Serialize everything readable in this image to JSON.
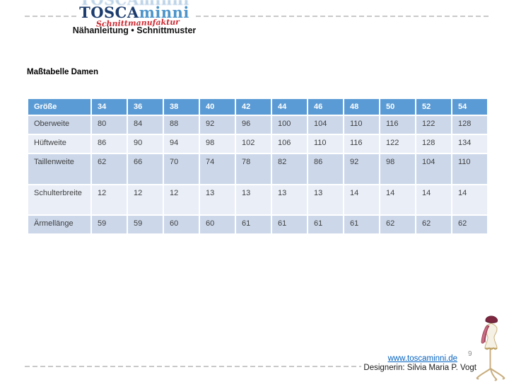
{
  "header": {
    "logo_ghost": "TOSCAminni",
    "logo_primary": "TOSCA",
    "logo_secondary": "minni",
    "logo_tagline": "Schnittmanufaktur",
    "subtitle": "Nähanleitung • Schnittmuster"
  },
  "page": {
    "title": "Maßtabelle Damen",
    "number": "9"
  },
  "table": {
    "columns": [
      "Größe",
      "34",
      "36",
      "38",
      "40",
      "42",
      "44",
      "46",
      "48",
      "50",
      "52",
      "54"
    ],
    "rows": [
      {
        "label": "Oberweite",
        "values": [
          "80",
          "84",
          "88",
          "92",
          "96",
          "100",
          "104",
          "110",
          "116",
          "122",
          "128"
        ]
      },
      {
        "label": "Hüftweite",
        "values": [
          "86",
          "90",
          "94",
          "98",
          "102",
          "106",
          "110",
          "116",
          "122",
          "128",
          "134"
        ]
      },
      {
        "label": "Taillenweite",
        "values": [
          "62",
          "66",
          "70",
          "74",
          "78",
          "82",
          "86",
          "92",
          "98",
          "104",
          "110"
        ]
      },
      {
        "label": "Schulterbreite",
        "values": [
          "12",
          "12",
          "12",
          "13",
          "13",
          "13",
          "13",
          "14",
          "14",
          "14",
          "14"
        ]
      },
      {
        "label": "Ärmellänge",
        "values": [
          "59",
          "59",
          "60",
          "60",
          "61",
          "61",
          "61",
          "61",
          "62",
          "62",
          "62"
        ]
      }
    ]
  },
  "footer": {
    "website": "www.toscaminni.de",
    "designer": "Designerin: Silvia Maria P. Vogt"
  },
  "icons": {
    "mannequin": "dress-form-illustration"
  },
  "colors": {
    "table_header_bg": "#5b9bd5",
    "table_row_dark": "#ccd8ea",
    "table_row_light": "#e9eef7",
    "link_blue": "#0563c1",
    "logo_dark_blue": "#1c3c6e",
    "logo_light_blue": "#4d95cb",
    "tagline_red": "#cc2b33",
    "dash_gray": "#c9c9c9"
  }
}
